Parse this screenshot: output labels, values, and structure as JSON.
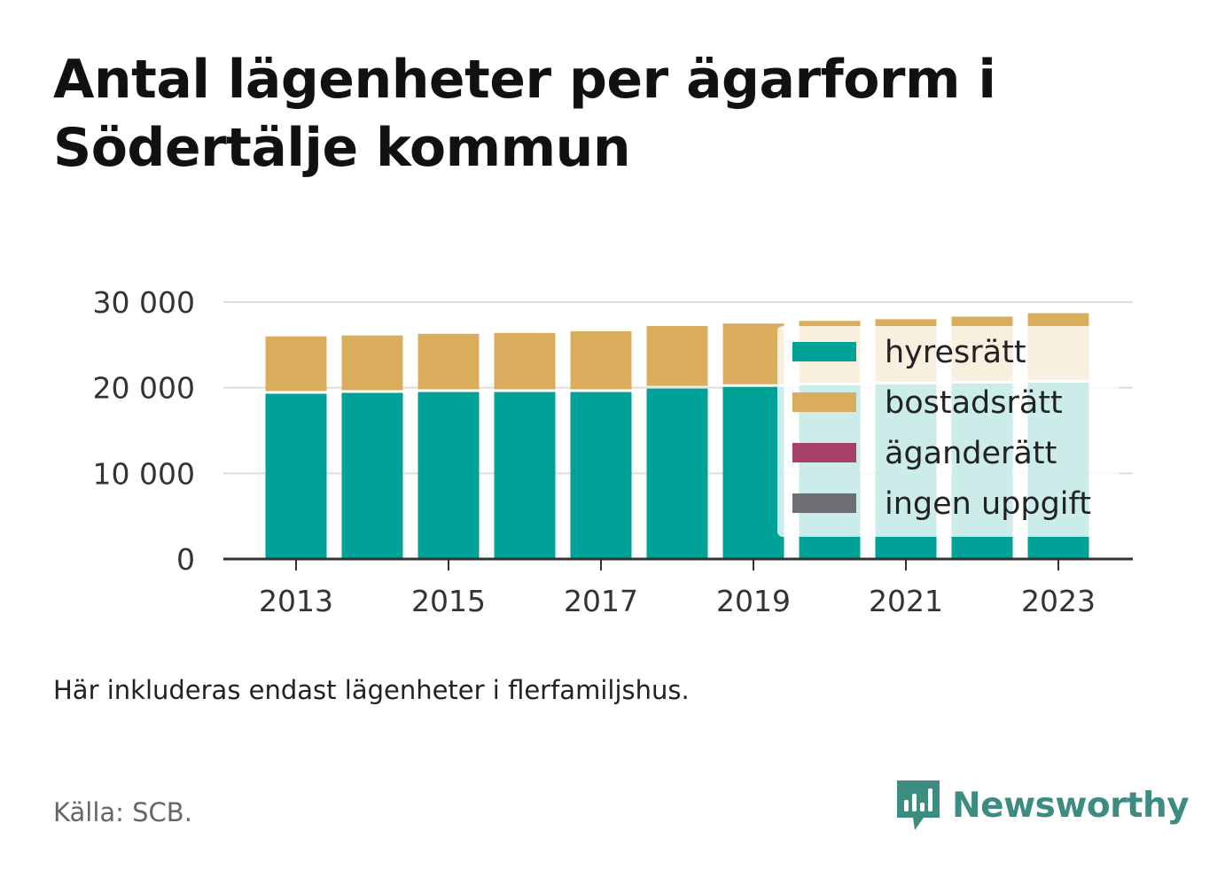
{
  "title": "Antal lägenheter per ägarform i Södertälje kommun",
  "note": "Här inkluderas endast lägenheter i flerfamiljshus.",
  "source": "Källa: SCB.",
  "brand": {
    "name": "Newsworthy",
    "color": "#3d8c82"
  },
  "chart_data": {
    "type": "bar",
    "stacked": true,
    "title": "Antal lägenheter per ägarform i Södertälje kommun",
    "xlabel": "",
    "ylabel": "",
    "categories": [
      "2013",
      "2014",
      "2015",
      "2016",
      "2017",
      "2018",
      "2019",
      "2020",
      "2021",
      "2022",
      "2023"
    ],
    "x_tick_labels": [
      "2013",
      "2015",
      "2017",
      "2019",
      "2021",
      "2023"
    ],
    "y_ticks": [
      0,
      10000,
      20000,
      30000
    ],
    "y_tick_labels": [
      "0",
      "10 000",
      "20 000",
      "30 000"
    ],
    "ylim": [
      0,
      31000
    ],
    "grid": true,
    "legend_position": "right-inside",
    "series": [
      {
        "name": "hyresrätt",
        "color": "#00a297",
        "values": [
          19300,
          19400,
          19500,
          19500,
          19500,
          19900,
          20100,
          20300,
          20400,
          20500,
          20600
        ]
      },
      {
        "name": "bostadsrätt",
        "color": "#d9ad5b",
        "values": [
          6700,
          6700,
          6800,
          6900,
          7100,
          7300,
          7400,
          7500,
          7600,
          7800,
          8100
        ]
      },
      {
        "name": "äganderätt",
        "color": "#a8416a",
        "values": [
          0,
          0,
          0,
          0,
          0,
          0,
          0,
          0,
          0,
          0,
          0
        ]
      },
      {
        "name": "ingen uppgift",
        "color": "#6f6e74",
        "values": [
          0,
          0,
          0,
          0,
          0,
          0,
          0,
          0,
          0,
          0,
          0
        ]
      }
    ]
  }
}
